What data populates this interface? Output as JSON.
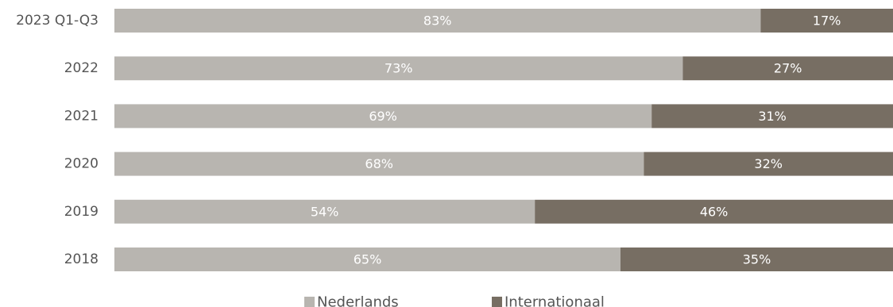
{
  "chart_data": {
    "type": "bar",
    "orientation": "horizontal",
    "stacked": true,
    "categories": [
      "2023 Q1-Q3",
      "2022",
      "2021",
      "2020",
      "2019",
      "2018"
    ],
    "series": [
      {
        "name": "Nederlands",
        "color": "#b8b5b0",
        "values": [
          83,
          73,
          69,
          68,
          54,
          65
        ]
      },
      {
        "name": "Internationaal",
        "color": "#776e63",
        "values": [
          17,
          27,
          31,
          32,
          46,
          35
        ]
      }
    ],
    "data_labels": [
      [
        "83%",
        "73%",
        "69%",
        "68%",
        "54%",
        "65%"
      ],
      [
        "17%",
        "27%",
        "31%",
        "32%",
        "46%",
        "35%"
      ]
    ],
    "xlim": [
      0,
      100
    ],
    "grid": false,
    "legend_position": "bottom-center"
  }
}
